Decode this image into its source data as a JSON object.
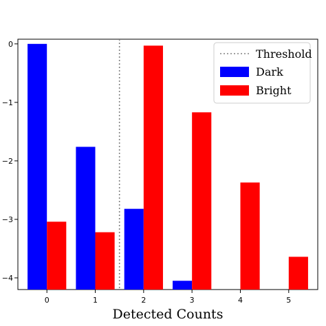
{
  "chart_data": {
    "type": "bar",
    "xlabel": "Detected Counts",
    "ylabel": "",
    "y_scale": "log",
    "ylim_log10": [
      -4.2,
      0.08
    ],
    "categories": [
      "0",
      "1",
      "2",
      "3",
      "4",
      "5"
    ],
    "y_tick_labels": [
      {
        "value": 0,
        "text": "0"
      },
      {
        "value": -1,
        "text": "−1"
      },
      {
        "value": -2,
        "text": "−2"
      },
      {
        "value": -3,
        "text": "−3"
      },
      {
        "value": -4,
        "text": "−4"
      }
    ],
    "threshold": {
      "name": "Threshold",
      "x": 1.5,
      "color": "#808080"
    },
    "series": [
      {
        "name": "Dark",
        "color": "#0000ff",
        "log10_values": [
          0.0,
          -1.76,
          -2.82,
          -4.05,
          null,
          null
        ]
      },
      {
        "name": "Bright",
        "color": "#ff0000",
        "log10_values": [
          -3.04,
          -3.22,
          -0.03,
          -1.17,
          -2.37,
          -3.64
        ]
      }
    ],
    "legend_position": "top-right",
    "grid": false
  }
}
